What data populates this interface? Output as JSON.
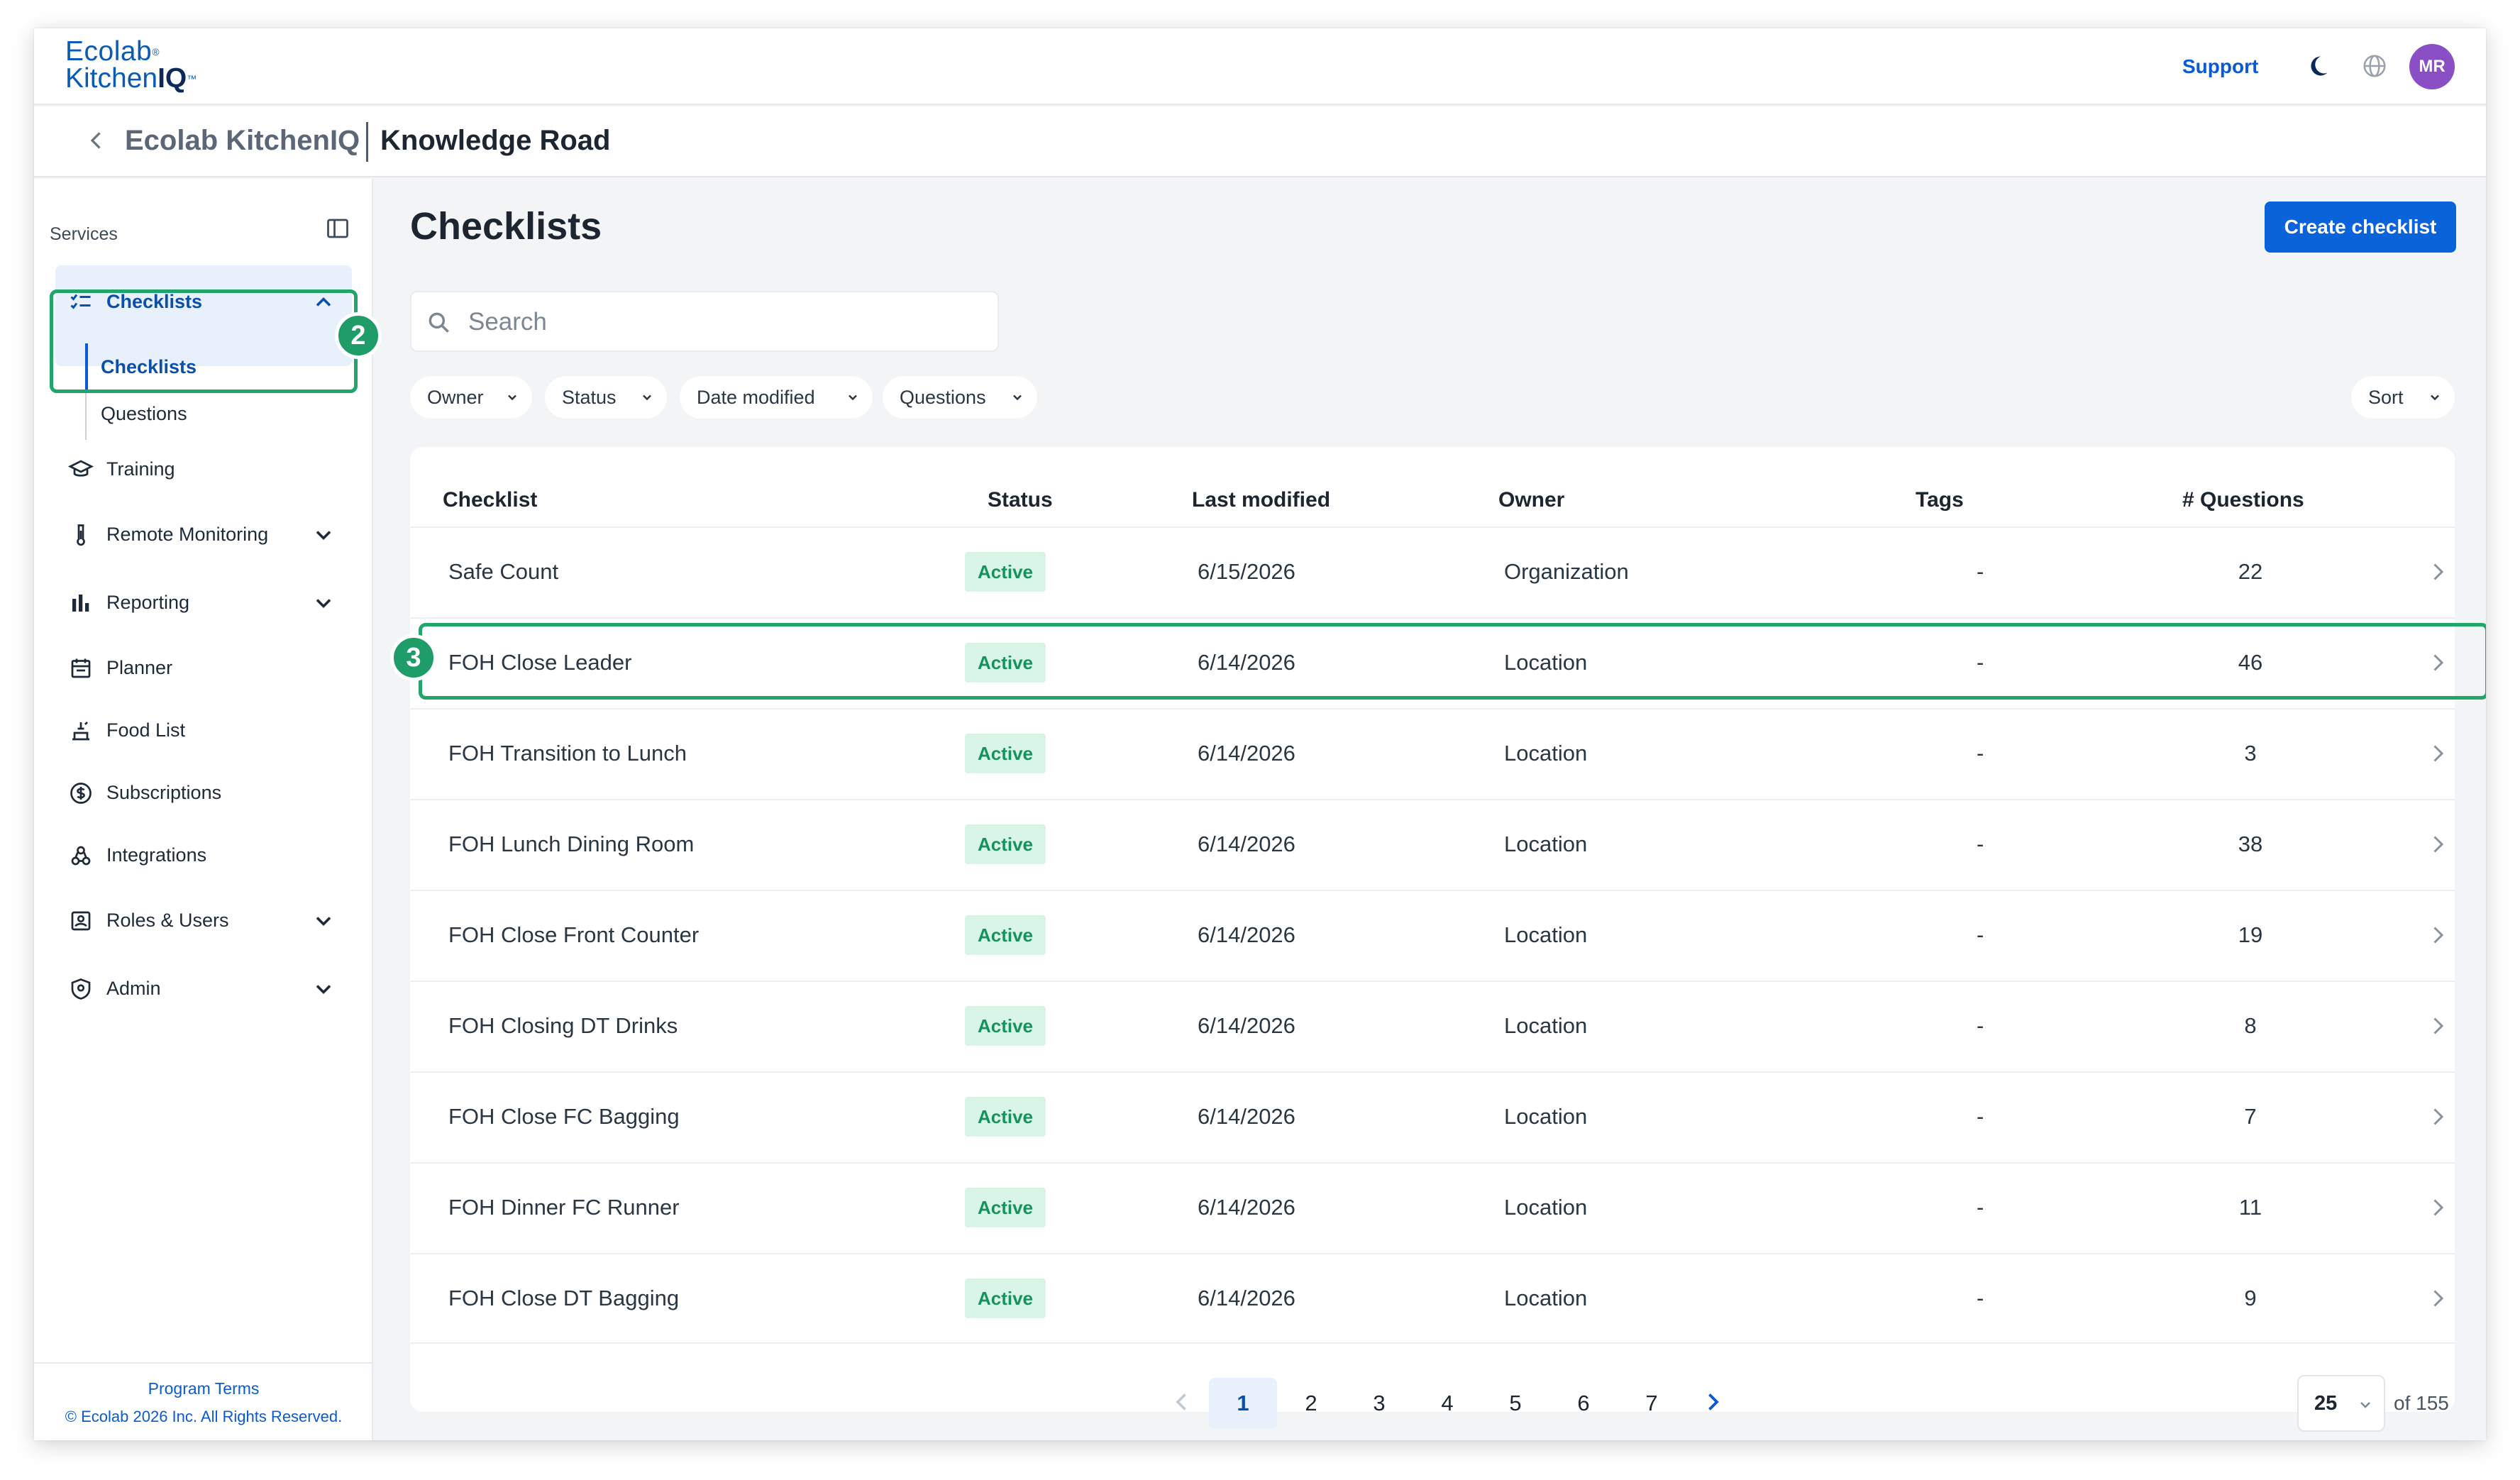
{
  "app": {
    "logo_line1": "Ecolab",
    "logo_line2": "Kitchen",
    "logo_line2_bold": "IQ",
    "support_label": "Support",
    "avatar_initials": "MR"
  },
  "breadcrumb": {
    "org": "Ecolab KitchenIQ",
    "location": "Knowledge Road"
  },
  "sidebar": {
    "section_label": "Services",
    "items": [
      {
        "label": "Checklists",
        "icon": "checklist-icon"
      },
      {
        "label": "Training",
        "icon": "graduation-cap-icon"
      },
      {
        "label": "Remote Monitoring",
        "icon": "thermometer-icon"
      },
      {
        "label": "Reporting",
        "icon": "bar-chart-icon"
      },
      {
        "label": "Planner",
        "icon": "calendar-icon"
      },
      {
        "label": "Food List",
        "icon": "food-list-icon"
      },
      {
        "label": "Subscriptions",
        "icon": "dollar-circle-icon"
      },
      {
        "label": "Integrations",
        "icon": "integrations-icon"
      },
      {
        "label": "Roles & Users",
        "icon": "id-badge-icon"
      },
      {
        "label": "Admin",
        "icon": "shield-icon"
      }
    ],
    "sub_items": [
      "Checklists",
      "Questions"
    ],
    "footer_terms": "Program Terms",
    "footer_copy": "© Ecolab 2026 Inc. All Rights Reserved."
  },
  "annotations": {
    "badge_2": "2",
    "badge_3": "3",
    "highlight_color": "#21a56b"
  },
  "main": {
    "title": "Checklists",
    "create_button": "Create checklist",
    "search_placeholder": "Search",
    "filters": [
      "Owner",
      "Status",
      "Date modified",
      "Questions"
    ],
    "sort_label": "Sort",
    "columns": [
      "Checklist",
      "Status",
      "Last modified",
      "Owner",
      "Tags",
      "# Questions"
    ],
    "rows": [
      {
        "name": "Safe Count",
        "status": "Active",
        "modified": "6/15/2026",
        "owner": "Organization",
        "tags": "-",
        "questions": "22"
      },
      {
        "name": "FOH Close Leader",
        "status": "Active",
        "modified": "6/14/2026",
        "owner": "Location",
        "tags": "-",
        "questions": "46"
      },
      {
        "name": "FOH Transition to Lunch",
        "status": "Active",
        "modified": "6/14/2026",
        "owner": "Location",
        "tags": "-",
        "questions": "3"
      },
      {
        "name": "FOH Lunch Dining Room",
        "status": "Active",
        "modified": "6/14/2026",
        "owner": "Location",
        "tags": "-",
        "questions": "38"
      },
      {
        "name": "FOH Close Front Counter",
        "status": "Active",
        "modified": "6/14/2026",
        "owner": "Location",
        "tags": "-",
        "questions": "19"
      },
      {
        "name": "FOH Closing DT Drinks",
        "status": "Active",
        "modified": "6/14/2026",
        "owner": "Location",
        "tags": "-",
        "questions": "8"
      },
      {
        "name": "FOH Close FC Bagging",
        "status": "Active",
        "modified": "6/14/2026",
        "owner": "Location",
        "tags": "-",
        "questions": "7"
      },
      {
        "name": "FOH Dinner FC Runner",
        "status": "Active",
        "modified": "6/14/2026",
        "owner": "Location",
        "tags": "-",
        "questions": "11"
      },
      {
        "name": "FOH Close DT Bagging",
        "status": "Active",
        "modified": "6/14/2026",
        "owner": "Location",
        "tags": "-",
        "questions": "9"
      }
    ],
    "pagination": {
      "pages": [
        "1",
        "2",
        "3",
        "4",
        "5",
        "6",
        "7"
      ],
      "current": "1",
      "page_size": "25",
      "total_label": "of 155"
    }
  },
  "colors": {
    "primary": "#0a63d8",
    "status_bg": "#d9f5e7",
    "status_text": "#16935c",
    "avatar": "#8a4fc4"
  }
}
